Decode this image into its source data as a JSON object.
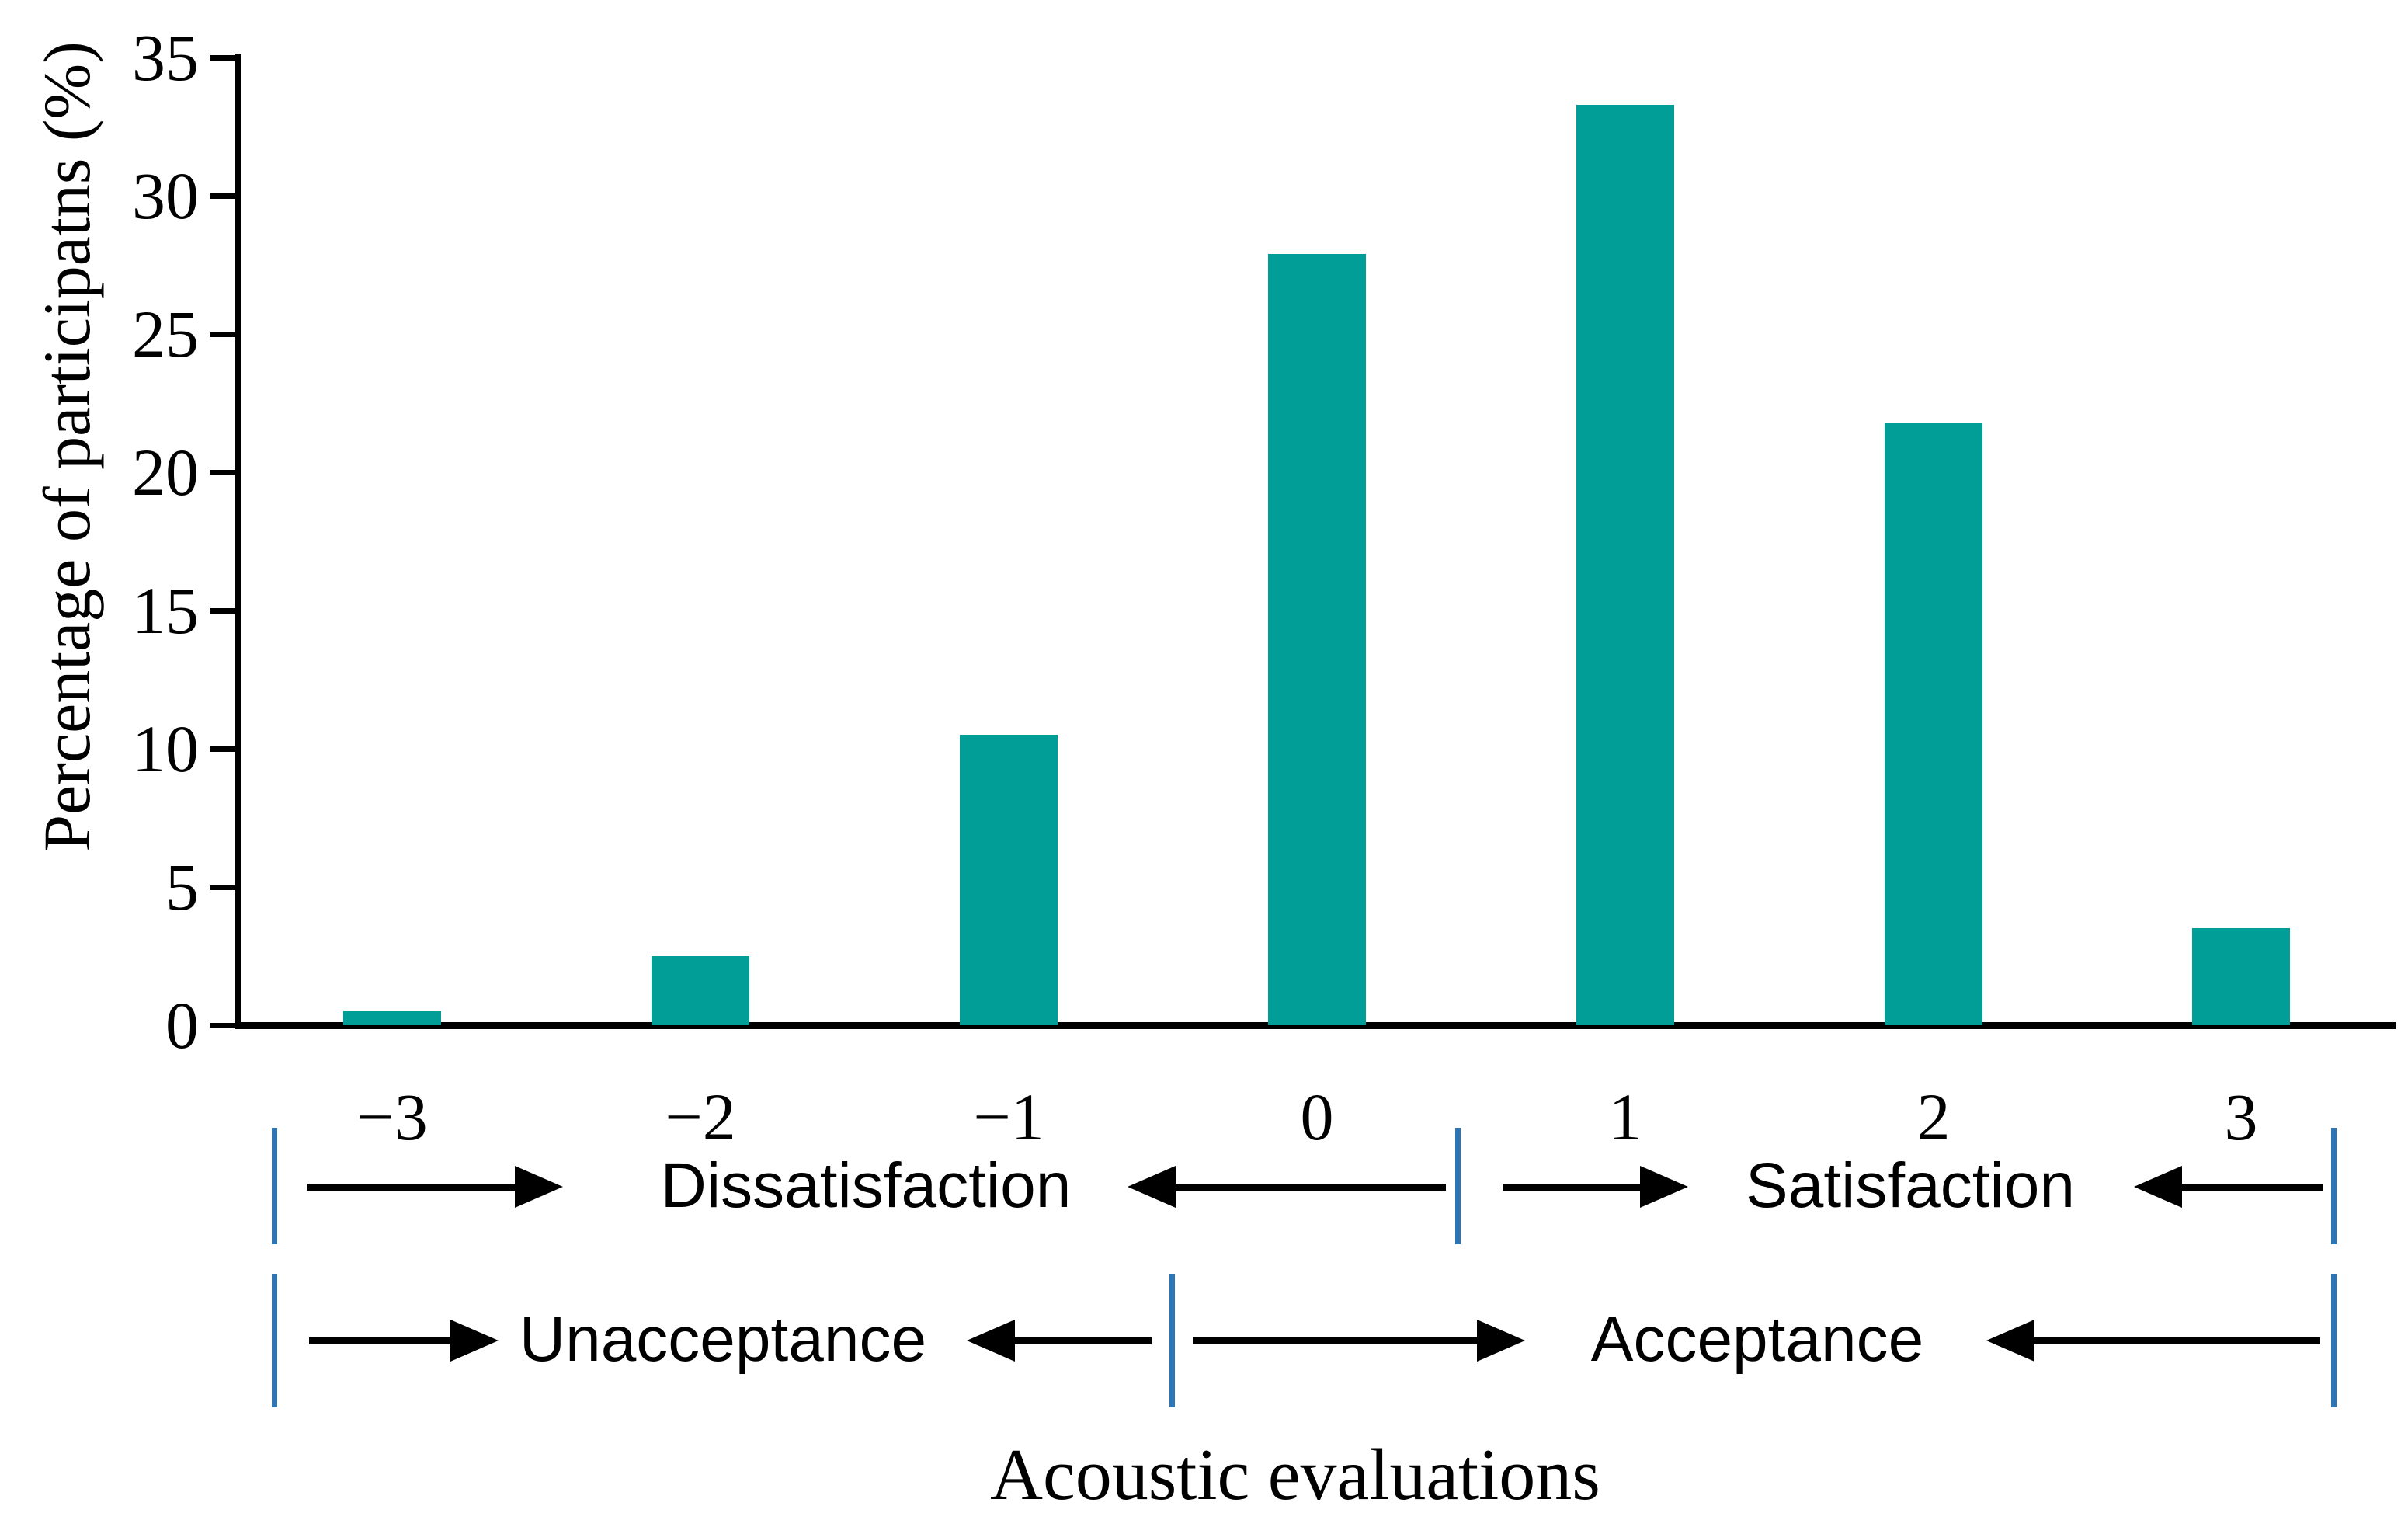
{
  "figure": {
    "y_axis": {
      "label": "Percentage of participatns (%)",
      "tick_labels": [
        "0",
        "5",
        "10",
        "15",
        "20",
        "25",
        "30",
        "35"
      ]
    },
    "x_axis": {
      "title": "Acoustic evaluations",
      "categories": [
        "−3",
        "−2",
        "−1",
        "0",
        "1",
        "2",
        "3"
      ]
    },
    "annotations": {
      "satisfaction_row": {
        "left_label": "Dissatisfaction",
        "right_label": "Satisfaction"
      },
      "acceptance_row": {
        "left_label": "Unacceptance",
        "right_label": "Acceptance"
      }
    },
    "colors": {
      "bar": "#009E96",
      "divider": "#2E75B6",
      "axis": "#000000"
    }
  },
  "chart_data": {
    "type": "bar",
    "categories": [
      -3,
      -2,
      -1,
      0,
      1,
      2,
      3
    ],
    "values": [
      0.5,
      2.5,
      10.5,
      27.9,
      33.3,
      21.8,
      3.5
    ],
    "title": "",
    "xlabel": "Acoustic evaluations",
    "ylabel": "Percentage of participatns (%)",
    "ylim": [
      0,
      35
    ],
    "ytick_step": 5,
    "bar_color": "#009E96",
    "grid": false,
    "legend": null,
    "annotation_scales": [
      {
        "axis_range": [
          -3.5,
          0.5
        ],
        "label": "Dissatisfaction"
      },
      {
        "axis_range": [
          0.5,
          3.5
        ],
        "label": "Satisfaction"
      },
      {
        "axis_range": [
          -3.5,
          -0.5
        ],
        "label": "Unacceptance"
      },
      {
        "axis_range": [
          -0.5,
          3.5
        ],
        "label": "Acceptance"
      }
    ]
  }
}
